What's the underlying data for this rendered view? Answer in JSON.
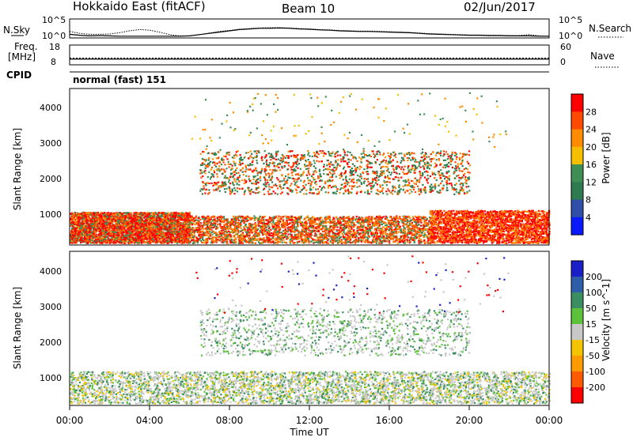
{
  "header": {
    "station": "Hokkaido East (fitACF)",
    "beam": "Beam 10",
    "date": "02/Jun/2017"
  },
  "chart_data": [
    {
      "type": "line",
      "panel": "noise",
      "left_label": "N.Sky",
      "right_label": "N.Search",
      "left_ticks": [
        "10^5",
        "10^0"
      ],
      "right_ticks": [
        "10^5",
        "10^0"
      ],
      "x": [
        0,
        0.5,
        1,
        1.5,
        2,
        2.5,
        3,
        3.5,
        4,
        4.5,
        5,
        5.5,
        6,
        6.5,
        7,
        7.5,
        8,
        8.5,
        9,
        9.5,
        10,
        10.5,
        11,
        11.5,
        12,
        12.5,
        13,
        13.5,
        14,
        14.5,
        15,
        15.5,
        16,
        16.5,
        17,
        17.5,
        18,
        18.5,
        19,
        19.5,
        20,
        20.5,
        21,
        21.5,
        22,
        22.5,
        23,
        23.5,
        24
      ],
      "series": [
        {
          "values": [
            0.9,
            0.6,
            0.4,
            0.5,
            0.4,
            0.3,
            0.3,
            0.3,
            0.3,
            0.3,
            0.3,
            0.3,
            0.4,
            0.8,
            1.2,
            1.6,
            2.0,
            2.4,
            2.6,
            2.8,
            2.8,
            2.9,
            2.8,
            2.6,
            2.5,
            2.3,
            2.2,
            2.0,
            1.9,
            1.8,
            1.8,
            1.7,
            1.6,
            1.5,
            1.4,
            1.2,
            1.0,
            0.9,
            0.8,
            0.7,
            0.6,
            0.6,
            0.5,
            0.5,
            0.4,
            0.4,
            0.4,
            0.3,
            0.3
          ]
        },
        {
          "values": [
            1.8,
            1.2,
            0.9,
            0.9,
            1.0,
            1.4,
            2.0,
            2.4,
            2.2,
            1.6,
            0.8,
            0.4,
            0.4,
            0.8,
            1.3,
            1.8,
            2.1,
            2.5,
            2.7,
            2.9,
            3.0,
            3.0,
            2.9,
            2.7,
            2.6,
            2.4,
            2.3,
            2.1,
            2.0,
            1.9,
            1.9,
            1.8,
            1.7,
            1.6,
            1.5,
            1.3,
            1.1,
            1.0,
            0.9,
            0.8,
            0.7,
            0.7,
            0.6,
            0.6,
            0.5,
            0.5,
            0.8,
            0.4,
            0.3
          ]
        }
      ]
    },
    {
      "type": "line",
      "panel": "frequency",
      "left_label": "Freq.",
      "left_unit": "[MHz]",
      "right_label": "Nave",
      "left_ticks": [
        "18",
        "8"
      ],
      "right_ticks": [
        "60",
        "0"
      ],
      "cpid_label": "CPID",
      "cpid_value": "normal (fast) 151",
      "frequency_level": 10.5,
      "nave_level": 18
    },
    {
      "type": "heatmap",
      "panel": "power",
      "ylabel": "Slant Range [km]",
      "y_ticks": [
        "4000",
        "3000",
        "2000",
        "1000"
      ],
      "ylim": [
        180,
        4500
      ],
      "colorbar_label": "Power [dB]",
      "colorbar_ticks": [
        "28",
        "24",
        "20",
        "16",
        "12",
        "8",
        "4"
      ],
      "colorbar_colors": [
        "#ff0000",
        "#ff4a00",
        "#ff8c00",
        "#f5be00",
        "#3f8f55",
        "#2e7b50",
        "#2f4fa8",
        "#0a1aff"
      ]
    },
    {
      "type": "heatmap",
      "panel": "velocity",
      "ylabel": "Slant Range [km]",
      "y_ticks": [
        "4000",
        "3000",
        "2000",
        "1000"
      ],
      "ylim": [
        180,
        4500
      ],
      "xlabel": "Time UT",
      "x_ticks": [
        "00:00",
        "04:00",
        "08:00",
        "12:00",
        "16:00",
        "20:00",
        "00:00"
      ],
      "colorbar_label": "Velocity [m s^-1]",
      "colorbar_ticks": [
        "200",
        "100",
        "50",
        "15",
        "-15",
        "-50",
        "-100",
        "-200"
      ],
      "colorbar_colors": [
        "#1a1fc8",
        "#2e5ea8",
        "#3a8e62",
        "#5cc23a",
        "#c8c8c8",
        "#f5c400",
        "#ff9b00",
        "#ff5a00",
        "#ff0000"
      ]
    }
  ]
}
